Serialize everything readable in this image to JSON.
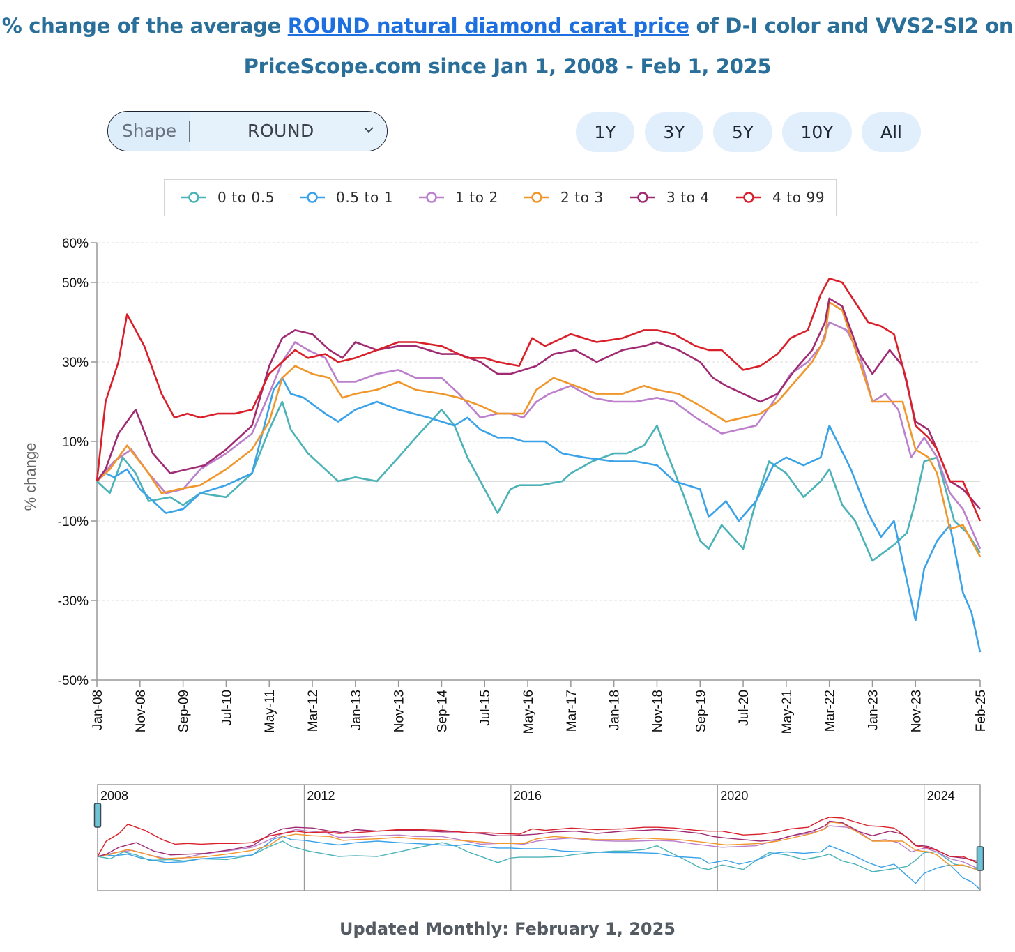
{
  "title": {
    "prefix": "% change of the average ",
    "link": "ROUND natural diamond carat price",
    "suffix_line1": " of D-I color and VVS2-SI2 on",
    "line2": "PriceScope.com since Jan 1, 2008 - Feb 1, 2025"
  },
  "controls": {
    "shape_label": "Shape",
    "shape_value": "ROUND",
    "range_buttons": [
      "1Y",
      "3Y",
      "5Y",
      "10Y",
      "All"
    ]
  },
  "footer": "Updated Monthly: February 1, 2025",
  "chart_data": {
    "type": "line",
    "ylabel": "% change",
    "ylim": [
      -50,
      60
    ],
    "yticks": [
      -50,
      -30,
      -10,
      10,
      30,
      50,
      60
    ],
    "ytick_labels": [
      "-50%",
      "-30%",
      "-10%",
      "10%",
      "30%",
      "50%",
      "60%"
    ],
    "x_range": [
      "2008-01",
      "2025-02"
    ],
    "x_tick_labels": [
      "Jan-08",
      "Nov-08",
      "Sep-09",
      "Jul-10",
      "May-11",
      "Mar-12",
      "Jan-13",
      "Nov-13",
      "Sep-14",
      "Jul-15",
      "May-16",
      "Mar-17",
      "Jan-18",
      "Nov-18",
      "Sep-19",
      "Jul-20",
      "May-21",
      "Mar-22",
      "Jan-23",
      "Nov-23",
      "Feb-25"
    ],
    "grid": "horizontal dashed",
    "legend_position": "top",
    "navigator_year_labels": [
      "2008",
      "2012",
      "2016",
      "2020",
      "2024"
    ],
    "series": [
      {
        "name": "0 to 0.5",
        "color": "#4bb3b8",
        "x": [
          "2008-01",
          "2008-04",
          "2008-07",
          "2008-10",
          "2009-01",
          "2009-06",
          "2009-09",
          "2010-01",
          "2010-07",
          "2011-01",
          "2011-05",
          "2011-08",
          "2011-10",
          "2012-02",
          "2012-06",
          "2012-09",
          "2013-01",
          "2013-06",
          "2013-11",
          "2014-03",
          "2014-09",
          "2014-12",
          "2015-03",
          "2015-07",
          "2015-10",
          "2016-01",
          "2016-03",
          "2016-08",
          "2017-01",
          "2017-03",
          "2017-08",
          "2018-01",
          "2018-04",
          "2018-08",
          "2018-11",
          "2019-01",
          "2019-05",
          "2019-09",
          "2019-11",
          "2020-02",
          "2020-07",
          "2020-10",
          "2021-01",
          "2021-05",
          "2021-09",
          "2022-01",
          "2022-03",
          "2022-06",
          "2022-09",
          "2023-01",
          "2023-06",
          "2023-09",
          "2023-11",
          "2024-01",
          "2024-04",
          "2024-08",
          "2024-11",
          "2025-02"
        ],
        "y": [
          0,
          -3,
          6,
          2,
          -5,
          -4,
          -6,
          -3,
          -4,
          2,
          13,
          20,
          13,
          7,
          3,
          0,
          1,
          0,
          6,
          11,
          18,
          14,
          6,
          -2,
          -8,
          -2,
          -1,
          -1,
          0,
          2,
          5,
          7,
          7,
          9,
          14,
          8,
          -3,
          -15,
          -17,
          -11,
          -17,
          -5,
          5,
          2,
          -4,
          0,
          3,
          -6,
          -10,
          -20,
          -16,
          -13,
          -5,
          5,
          6,
          -10,
          -13,
          -18
        ]
      },
      {
        "name": "0.5 to 1",
        "color": "#3aa2e8",
        "x": [
          "2008-01",
          "2008-03",
          "2008-05",
          "2008-08",
          "2008-11",
          "2009-01",
          "2009-05",
          "2009-09",
          "2010-01",
          "2010-07",
          "2011-01",
          "2011-06",
          "2011-08",
          "2011-10",
          "2012-01",
          "2012-06",
          "2012-09",
          "2013-01",
          "2013-06",
          "2013-11",
          "2014-06",
          "2014-12",
          "2015-03",
          "2015-06",
          "2015-10",
          "2016-01",
          "2016-04",
          "2016-09",
          "2017-01",
          "2017-06",
          "2018-01",
          "2018-06",
          "2018-11",
          "2019-03",
          "2019-09",
          "2019-11",
          "2020-03",
          "2020-06",
          "2020-10",
          "2021-02",
          "2021-05",
          "2021-09",
          "2022-01",
          "2022-03",
          "2022-08",
          "2022-12",
          "2023-03",
          "2023-06",
          "2023-09",
          "2023-11",
          "2024-01",
          "2024-04",
          "2024-07",
          "2024-10",
          "2024-12",
          "2025-02"
        ],
        "y": [
          0,
          2,
          1,
          3,
          -2,
          -4,
          -8,
          -7,
          -3,
          -1,
          2,
          23,
          26,
          22,
          21,
          17,
          15,
          18,
          20,
          18,
          16,
          14,
          16,
          13,
          11,
          11,
          10,
          10,
          7,
          6,
          5,
          5,
          4,
          0,
          -2,
          -9,
          -5,
          -10,
          -5,
          4,
          6,
          4,
          6,
          14,
          3,
          -8,
          -14,
          -10,
          -25,
          -35,
          -22,
          -15,
          -11,
          -28,
          -33,
          -43
        ]
      },
      {
        "name": "1 to 2",
        "color": "#bb7fcc",
        "x": [
          "2008-01",
          "2008-05",
          "2008-09",
          "2009-01",
          "2009-05",
          "2009-09",
          "2010-01",
          "2010-07",
          "2011-01",
          "2011-05",
          "2011-08",
          "2011-11",
          "2012-02",
          "2012-06",
          "2012-09",
          "2013-01",
          "2013-06",
          "2013-11",
          "2014-03",
          "2014-09",
          "2015-01",
          "2015-06",
          "2015-10",
          "2016-01",
          "2016-04",
          "2016-07",
          "2016-10",
          "2017-03",
          "2017-08",
          "2018-01",
          "2018-06",
          "2018-11",
          "2019-03",
          "2019-08",
          "2019-11",
          "2020-02",
          "2020-06",
          "2020-10",
          "2021-02",
          "2021-06",
          "2021-10",
          "2022-01",
          "2022-03",
          "2022-07",
          "2022-10",
          "2023-01",
          "2023-04",
          "2023-07",
          "2023-10",
          "2024-01",
          "2024-04",
          "2024-07",
          "2024-10",
          "2025-02"
        ],
        "y": [
          0,
          5,
          8,
          2,
          -3,
          -2,
          3,
          7,
          12,
          22,
          30,
          35,
          33,
          31,
          25,
          25,
          27,
          28,
          26,
          26,
          22,
          16,
          17,
          17,
          16,
          20,
          22,
          24,
          21,
          20,
          20,
          21,
          20,
          16,
          14,
          12,
          13,
          14,
          20,
          27,
          30,
          34,
          40,
          38,
          32,
          20,
          22,
          18,
          6,
          11,
          6,
          -3,
          -7,
          -17
        ]
      },
      {
        "name": "2 to 3",
        "color": "#f0962a",
        "x": [
          "2008-01",
          "2008-04",
          "2008-08",
          "2009-01",
          "2009-04",
          "2009-08",
          "2010-01",
          "2010-07",
          "2011-01",
          "2011-05",
          "2011-08",
          "2011-11",
          "2012-03",
          "2012-07",
          "2012-10",
          "2013-01",
          "2013-06",
          "2013-11",
          "2014-03",
          "2014-09",
          "2015-01",
          "2015-06",
          "2015-10",
          "2016-01",
          "2016-04",
          "2016-07",
          "2016-11",
          "2017-04",
          "2017-09",
          "2018-03",
          "2018-08",
          "2018-11",
          "2019-04",
          "2019-09",
          "2019-12",
          "2020-03",
          "2020-07",
          "2020-11",
          "2021-03",
          "2021-07",
          "2021-11",
          "2022-02",
          "2022-03",
          "2022-06",
          "2022-10",
          "2023-01",
          "2023-05",
          "2023-08",
          "2023-11",
          "2024-02",
          "2024-04",
          "2024-07",
          "2024-10",
          "2025-02"
        ],
        "y": [
          0,
          3,
          9,
          2,
          -3,
          -2,
          -1,
          3,
          8,
          15,
          26,
          29,
          27,
          26,
          21,
          22,
          23,
          25,
          23,
          22,
          21,
          19,
          17,
          17,
          17,
          23,
          26,
          24,
          22,
          22,
          24,
          23,
          22,
          19,
          17,
          15,
          16,
          17,
          20,
          25,
          30,
          36,
          45,
          43,
          30,
          20,
          20,
          20,
          8,
          6,
          2,
          -12,
          -11,
          -19
        ]
      },
      {
        "name": "3 to 4",
        "color": "#a02b72",
        "x": [
          "2008-01",
          "2008-03",
          "2008-06",
          "2008-10",
          "2009-02",
          "2009-06",
          "2009-10",
          "2010-02",
          "2010-07",
          "2011-01",
          "2011-05",
          "2011-08",
          "2011-11",
          "2012-03",
          "2012-07",
          "2012-10",
          "2013-01",
          "2013-06",
          "2013-11",
          "2014-03",
          "2014-09",
          "2015-01",
          "2015-06",
          "2015-10",
          "2016-01",
          "2016-04",
          "2016-07",
          "2016-11",
          "2017-04",
          "2017-09",
          "2018-03",
          "2018-08",
          "2018-11",
          "2019-04",
          "2019-09",
          "2019-12",
          "2020-03",
          "2020-07",
          "2020-11",
          "2021-03",
          "2021-07",
          "2021-11",
          "2022-02",
          "2022-03",
          "2022-06",
          "2022-10",
          "2023-01",
          "2023-05",
          "2023-08",
          "2023-11",
          "2024-02",
          "2024-04",
          "2024-07",
          "2024-10",
          "2025-02"
        ],
        "y": [
          0,
          3,
          12,
          18,
          7,
          2,
          3,
          4,
          8,
          14,
          29,
          36,
          38,
          37,
          33,
          31,
          35,
          33,
          34,
          34,
          32,
          32,
          30,
          27,
          27,
          28,
          29,
          32,
          33,
          30,
          33,
          34,
          35,
          33,
          30,
          26,
          24,
          22,
          20,
          22,
          28,
          33,
          40,
          46,
          44,
          32,
          27,
          33,
          29,
          15,
          13,
          8,
          0,
          -2,
          -7
        ]
      },
      {
        "name": "4 to 99",
        "color": "#d9202a",
        "x": [
          "2008-01",
          "2008-03",
          "2008-06",
          "2008-08",
          "2008-10",
          "2008-12",
          "2009-04",
          "2009-07",
          "2009-10",
          "2010-01",
          "2010-05",
          "2010-09",
          "2011-01",
          "2011-05",
          "2011-08",
          "2011-11",
          "2012-02",
          "2012-06",
          "2012-09",
          "2013-01",
          "2013-06",
          "2013-11",
          "2014-03",
          "2014-09",
          "2015-03",
          "2015-07",
          "2015-10",
          "2016-03",
          "2016-06",
          "2016-09",
          "2017-03",
          "2017-09",
          "2018-03",
          "2018-08",
          "2018-11",
          "2019-03",
          "2019-08",
          "2019-11",
          "2020-02",
          "2020-07",
          "2020-11",
          "2021-03",
          "2021-06",
          "2021-10",
          "2022-01",
          "2022-03",
          "2022-06",
          "2022-09",
          "2022-12",
          "2023-03",
          "2023-06",
          "2023-09",
          "2023-11",
          "2024-02",
          "2024-04",
          "2024-07",
          "2024-10",
          "2025-02"
        ],
        "y": [
          0,
          20,
          30,
          42,
          38,
          34,
          22,
          16,
          17,
          16,
          17,
          17,
          18,
          27,
          30,
          33,
          31,
          32,
          30,
          31,
          33,
          35,
          35,
          34,
          31,
          31,
          30,
          29,
          36,
          34,
          37,
          35,
          36,
          38,
          38,
          37,
          34,
          33,
          33,
          28,
          29,
          32,
          36,
          38,
          47,
          51,
          50,
          45,
          40,
          39,
          37,
          25,
          14,
          11,
          8,
          0,
          0,
          -10
        ]
      }
    ]
  }
}
